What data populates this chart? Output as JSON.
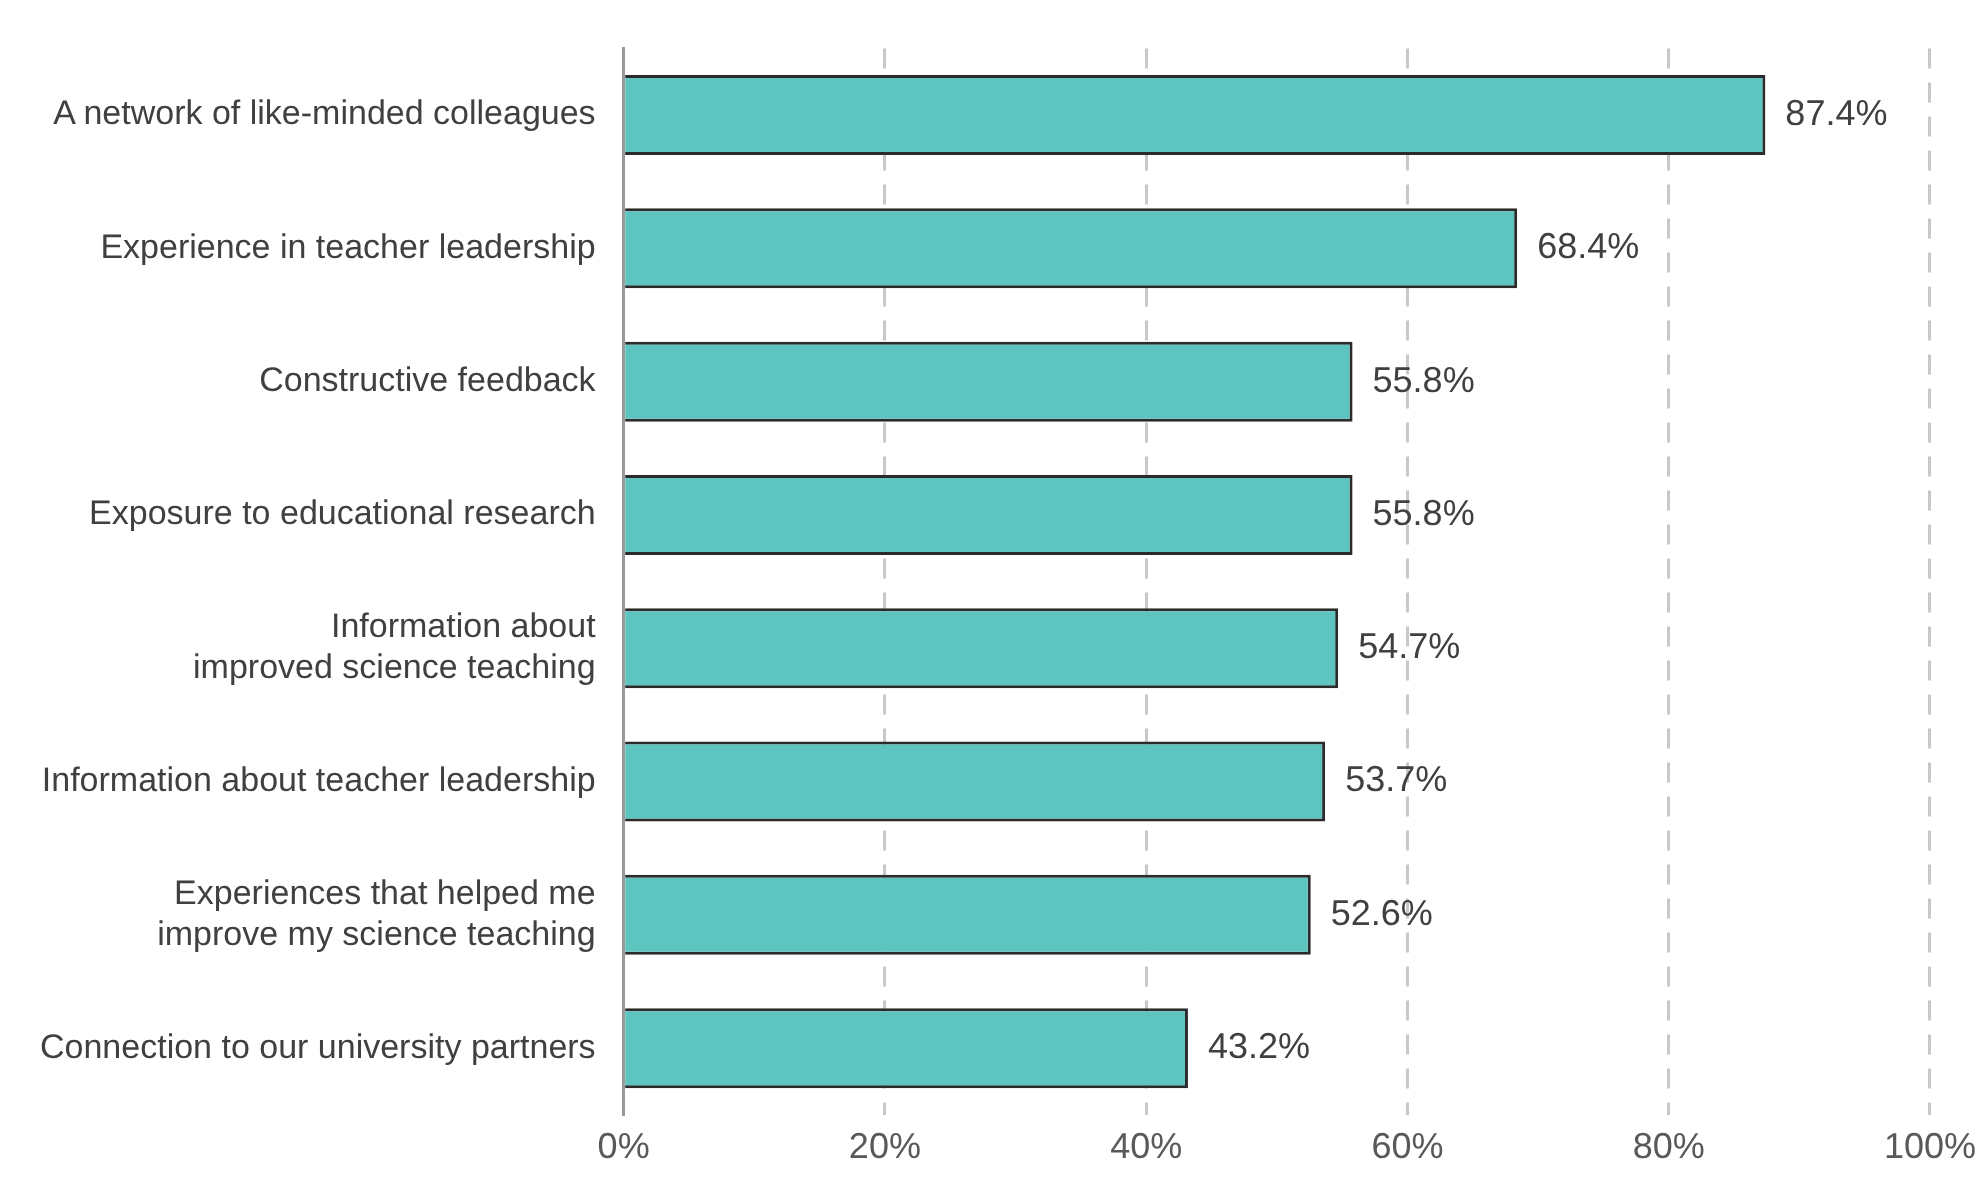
{
  "chart_data": {
    "type": "bar",
    "orientation": "horizontal",
    "categories": [
      "A network of like-minded colleagues",
      "Experience in teacher leadership",
      "Constructive feedback",
      "Exposure to educational research",
      "Information about improved science teaching",
      "Information about teacher leadership",
      "Experiences that helped me improve my science teaching",
      "Connection to our university partners"
    ],
    "values": [
      87.4,
      68.4,
      55.8,
      55.8,
      54.7,
      53.7,
      52.6,
      43.2
    ],
    "value_labels": [
      "87.4%",
      "68.4%",
      "55.8%",
      "55.8%",
      "54.7%",
      "53.7%",
      "52.6%",
      "43.2%"
    ],
    "color": "#5ec4bf",
    "xlim": [
      0,
      100
    ],
    "xticks": [
      {
        "value": 0,
        "label": "0%"
      },
      {
        "value": 20,
        "label": "20%"
      },
      {
        "value": 40,
        "label": "40%"
      },
      {
        "value": 60,
        "label": "60%"
      },
      {
        "value": 80,
        "label": "80%"
      },
      {
        "value": 100,
        "label": "100%"
      }
    ],
    "grid": "x",
    "legend": false
  }
}
